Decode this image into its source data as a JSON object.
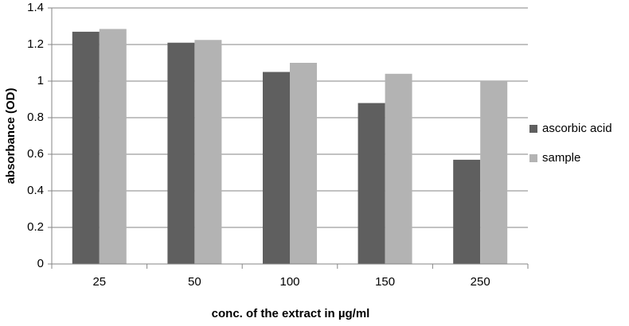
{
  "chart_data": {
    "type": "bar",
    "x_label": "conc. of the extract  in µg/ml",
    "y_label": "absorbance (OD)",
    "categories": [
      "25",
      "50",
      "100",
      "150",
      "250"
    ],
    "series": [
      {
        "name": "ascorbic acid",
        "color": "#5f5f5f",
        "values": [
          1.27,
          1.21,
          1.05,
          0.88,
          0.57
        ]
      },
      {
        "name": "sample",
        "color": "#b3b3b3",
        "values": [
          1.285,
          1.225,
          1.1,
          1.04,
          1.0
        ]
      }
    ],
    "ylim": [
      0,
      1.4
    ],
    "yticks": [
      0,
      0.2,
      0.4,
      0.6,
      0.8,
      1,
      1.2,
      1.4
    ],
    "grid": true,
    "legend": "right"
  }
}
